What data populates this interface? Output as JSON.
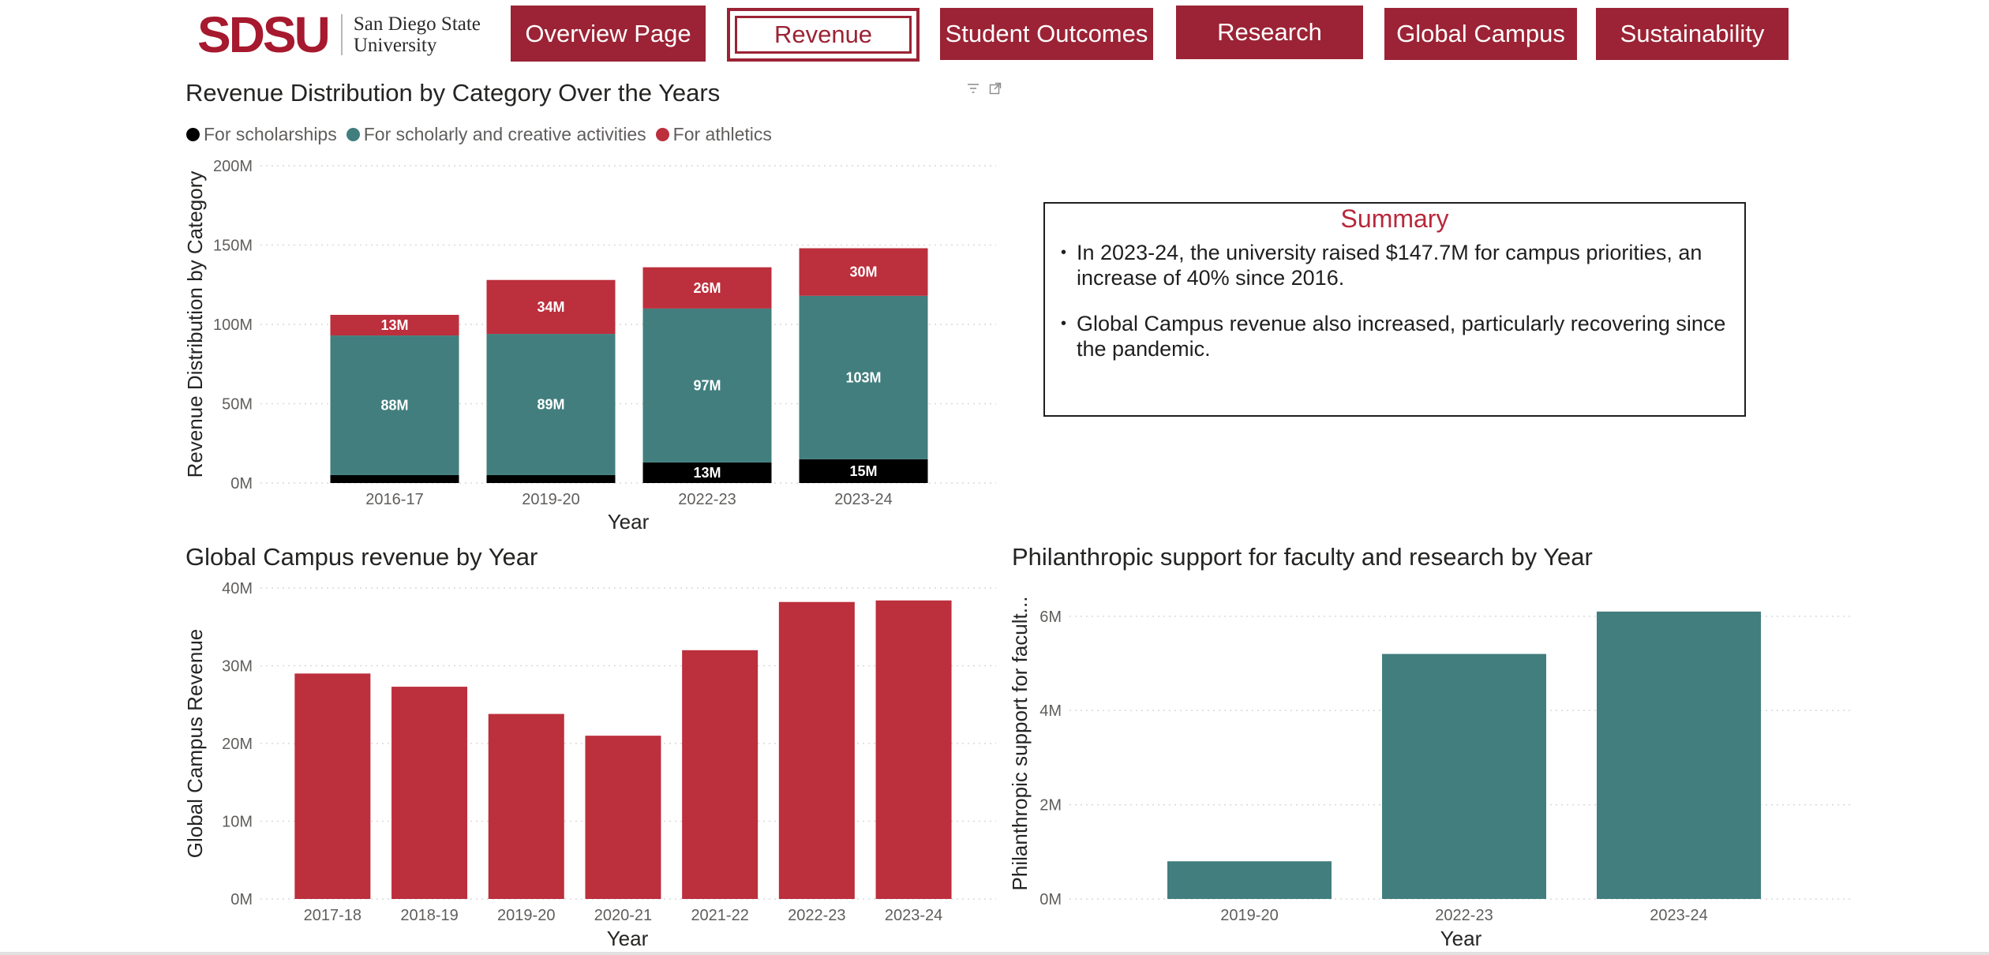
{
  "header": {
    "logo_mark": "SDSU",
    "logo_line1": "San Diego State",
    "logo_line2": "University"
  },
  "nav": {
    "items": [
      {
        "label": "Overview Page",
        "active": false
      },
      {
        "label": "Revenue",
        "active": true
      },
      {
        "label": "Student Outcomes",
        "active": false
      },
      {
        "label": "Research",
        "active": false
      },
      {
        "label": "Global Campus",
        "active": false
      },
      {
        "label": "Sustainability",
        "active": false
      }
    ]
  },
  "colors": {
    "brand": "#9b2335",
    "athletics": "#bc2f3c",
    "scholarly": "#427e7e",
    "scholarships": "#000000",
    "teal": "#427e7e",
    "red": "#bc2f3c"
  },
  "icons": [
    "filter-icon",
    "focus-mode-icon"
  ],
  "summary": {
    "title": "Summary",
    "bullets": [
      "In 2023-24, the university raised $147.7M for campus priorities, an increase of 40% since 2016.",
      "Global Campus revenue also increased, particularly recovering since the pandemic."
    ]
  },
  "chart_data": [
    {
      "type": "bar",
      "stacked": true,
      "title": "Revenue Distribution by Category Over the Years",
      "xlabel": "Year",
      "ylabel": "Revenue Distribution by Category",
      "categories": [
        "2016-17",
        "2019-20",
        "2022-23",
        "2023-24"
      ],
      "series": [
        {
          "name": "For scholarships",
          "values": [
            5,
            5,
            13,
            15
          ],
          "labels": [
            "",
            "",
            "13M",
            "15M"
          ]
        },
        {
          "name": "For scholarly and creative activities",
          "values": [
            88,
            89,
            97,
            103
          ],
          "labels": [
            "88M",
            "89M",
            "97M",
            "103M"
          ]
        },
        {
          "name": "For athletics",
          "values": [
            13,
            34,
            26,
            30
          ],
          "labels": [
            "13M",
            "34M",
            "26M",
            "30M"
          ]
        }
      ],
      "ylim": [
        0,
        200
      ],
      "yticks": [
        "0M",
        "50M",
        "100M",
        "150M",
        "200M"
      ],
      "legend": "top-left",
      "grid": true
    },
    {
      "type": "bar",
      "title": "Global Campus revenue by Year",
      "xlabel": "Year",
      "ylabel": "Global Campus Revenue",
      "categories": [
        "2017-18",
        "2018-19",
        "2019-20",
        "2020-21",
        "2021-22",
        "2022-23",
        "2023-24"
      ],
      "values": [
        29,
        27.3,
        23.8,
        21,
        32,
        38.2,
        38.4
      ],
      "ylim": [
        0,
        40
      ],
      "yticks": [
        "0M",
        "10M",
        "20M",
        "30M",
        "40M"
      ],
      "grid": true
    },
    {
      "type": "bar",
      "title": "Philanthropic support for faculty and research by Year",
      "xlabel": "Year",
      "ylabel": "Philanthropic support for facult...",
      "categories": [
        "2019-20",
        "2022-23",
        "2023-24"
      ],
      "values": [
        0.8,
        5.2,
        6.1
      ],
      "ylim": [
        0,
        6.6
      ],
      "yticks": [
        "0M",
        "2M",
        "4M",
        "6M"
      ],
      "grid": true
    }
  ]
}
